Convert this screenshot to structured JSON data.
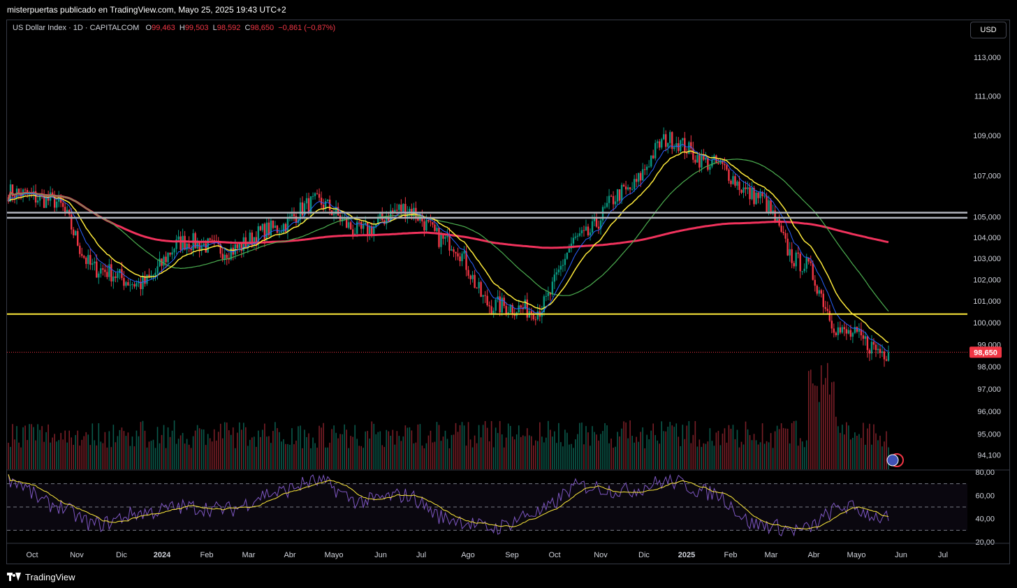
{
  "header": {
    "publisher_line": "misterpuertas publicado en TradingView.com, Mayo 25, 2025 19:43 UTC+2"
  },
  "legend": {
    "symbol": "US Dollar Index · 1D · CAPITALCOM",
    "open_label": "O",
    "open": "99,463",
    "high_label": "H",
    "high": "99,503",
    "low_label": "L",
    "low": "98,592",
    "close_label": "C",
    "close": "98,650",
    "change": "−0,861 (−0,87%)"
  },
  "currency_button": "USD",
  "footer": {
    "brand": "TradingView"
  },
  "colors": {
    "up": "#089981",
    "down": "#f23645",
    "ema_fast": "#2962ff",
    "ema_mid": "#ffeb3b",
    "sma_100": "#4caf50",
    "sma_200": "#f0325c",
    "support": "#ffeb3b",
    "resistance": "#b2b5be",
    "rsi": "#7e57c2",
    "rsi_ma": "#ffeb3b"
  },
  "chart_data": [
    {
      "type": "candlestick",
      "title": "US Dollar Index · 1D · CAPITALCOM",
      "x_ticks": [
        "Oct",
        "Nov",
        "Dic",
        "2024",
        "Feb",
        "Mar",
        "Abr",
        "Mayo",
        "Jun",
        "Jul",
        "Ago",
        "Sep",
        "Oct",
        "Nov",
        "Dic",
        "2025",
        "Feb",
        "Mar",
        "Abr",
        "Mayo",
        "Jun",
        "Jul"
      ],
      "y_ticks": [
        "113,000",
        "111,000",
        "109,000",
        "107,000",
        "105,000",
        "104,000",
        "103,000",
        "102,000",
        "101,000",
        "100,000",
        "99,000",
        "98,000",
        "97,000",
        "96,000",
        "95,000",
        "94,100"
      ],
      "y_scale": "log",
      "last_price_label": "98,650",
      "horizontal_levels": [
        {
          "kind": "resistance",
          "value": 105.2
        },
        {
          "kind": "resistance",
          "value": 104.95
        },
        {
          "kind": "support",
          "value": 100.4
        }
      ],
      "close_keypoints": {
        "month": [
          "Oct",
          "Nov",
          "Dic",
          "2024",
          "Feb",
          "Mar",
          "Abr",
          "Mayo",
          "Jun",
          "Jul",
          "Ago",
          "Sep",
          "Oct",
          "Nov",
          "Dic",
          "2025",
          "Feb",
          "Mar",
          "Abr",
          "Mayo",
          "May 25"
        ],
        "values": [
          106.2,
          105.8,
          102.5,
          101.8,
          103.8,
          103.4,
          104.4,
          105.7,
          104.3,
          105.4,
          103.8,
          100.8,
          100.6,
          104.0,
          106.2,
          108.8,
          107.6,
          106.0,
          102.8,
          99.5,
          98.65
        ]
      }
    },
    {
      "type": "line",
      "title": "RSI",
      "y_ticks": [
        "80,00",
        "60,00",
        "40,00",
        "20,00"
      ],
      "ylim": [
        20,
        80
      ],
      "bands": [
        70,
        50,
        30
      ],
      "rsi_keypoints": [
        74,
        52,
        35,
        45,
        50,
        48,
        62,
        72,
        55,
        60,
        40,
        32,
        45,
        68,
        64,
        72,
        62,
        35,
        30,
        50,
        40
      ]
    }
  ]
}
